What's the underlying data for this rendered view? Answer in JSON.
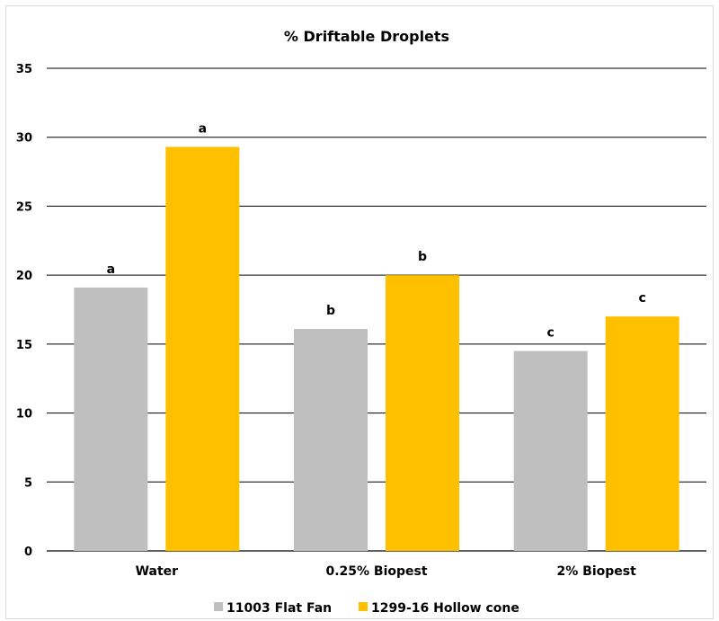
{
  "chart_data": {
    "type": "bar",
    "title": "% Driftable Droplets",
    "categories": [
      "Water",
      "0.25% Biopest",
      "2% Biopest"
    ],
    "series": [
      {
        "name": "11003 Flat Fan",
        "values": [
          19.1,
          16.1,
          14.5
        ],
        "labels": [
          "a",
          "b",
          "c"
        ],
        "color": "#bfbfbf"
      },
      {
        "name": "1299-16 Hollow cone",
        "values": [
          29.3,
          20.0,
          17.0
        ],
        "labels": [
          "a",
          "b",
          "c"
        ],
        "color": "#ffc000"
      }
    ],
    "yticks": [
      "0",
      "5",
      "10",
      "15",
      "20",
      "25",
      "30",
      "35"
    ],
    "ylim": [
      0,
      35
    ],
    "grid": true,
    "legend_position": "bottom"
  }
}
